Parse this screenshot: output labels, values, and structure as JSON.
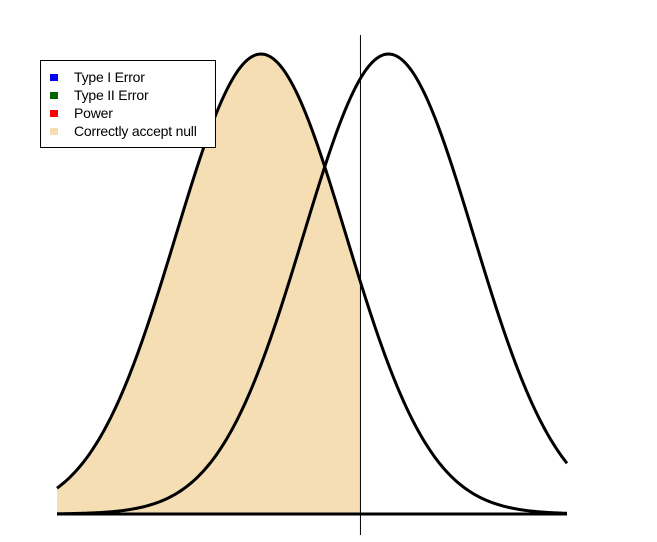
{
  "legend": [
    {
      "label": "Type I Error",
      "color": "#0000ff"
    },
    {
      "label": "Type II Error",
      "color": "#006400"
    },
    {
      "label": "Power",
      "color": "#ff0000"
    },
    {
      "label": "Correctly accept null",
      "color": "#f5deb3"
    }
  ],
  "chart_data": {
    "type": "area",
    "distributions": [
      {
        "mean": 0,
        "sd": 1
      },
      {
        "mean": 1.5,
        "sd": 1
      }
    ],
    "critical_value": 1.17,
    "shaded_region": "correctly-accept-null",
    "xlim": [
      -2.4,
      3.6
    ],
    "colors": {
      "fill": "#f5deb3",
      "curve": "#000000"
    }
  }
}
